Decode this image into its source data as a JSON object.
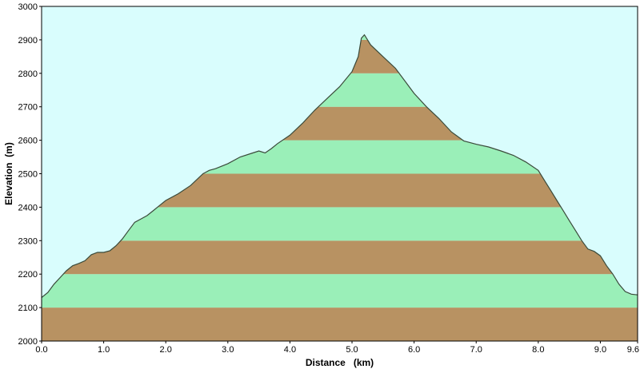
{
  "chart_data": {
    "type": "area",
    "xlabel": "Distance   (km)",
    "ylabel": "Elevation  (m)",
    "xlim": [
      0,
      9.6
    ],
    "ylim": [
      2000,
      3000
    ],
    "x_ticks": [
      "0.0",
      "1.0",
      "2.0",
      "3.0",
      "4.0",
      "5.0",
      "6.0",
      "7.0",
      "8.0",
      "9.0",
      "9.6"
    ],
    "x_tick_values": [
      0,
      1,
      2,
      3,
      4,
      5,
      6,
      7,
      8,
      9,
      9.6
    ],
    "y_ticks": [
      "2000",
      "2100",
      "2200",
      "2300",
      "2400",
      "2500",
      "2600",
      "2700",
      "2800",
      "2900",
      "3000"
    ],
    "y_tick_values": [
      2000,
      2100,
      2200,
      2300,
      2400,
      2500,
      2600,
      2700,
      2800,
      2900,
      3000
    ],
    "band_interval": 100,
    "colors": {
      "background": "#d9fdfd",
      "band_dark": "#b89262",
      "band_light": "#9aefb8",
      "profile_line": "#3a4a3a"
    },
    "series": [
      {
        "x": [
          0.0,
          0.1,
          0.2,
          0.3,
          0.4,
          0.5,
          0.6,
          0.7,
          0.8,
          0.9,
          1.0,
          1.1,
          1.2,
          1.3,
          1.4,
          1.5,
          1.6,
          1.7,
          1.8,
          1.9,
          2.0,
          2.2,
          2.4,
          2.6,
          2.7,
          2.8,
          3.0,
          3.2,
          3.4,
          3.5,
          3.6,
          3.7,
          3.8,
          4.0,
          4.2,
          4.4,
          4.6,
          4.8,
          5.0,
          5.1,
          5.15,
          5.2,
          5.3,
          5.5,
          5.7,
          5.9,
          6.0,
          6.2,
          6.4,
          6.6,
          6.8,
          7.0,
          7.2,
          7.4,
          7.6,
          7.8,
          8.0,
          8.1,
          8.2,
          8.3,
          8.4,
          8.5,
          8.6,
          8.7,
          8.8,
          8.9,
          9.0,
          9.1,
          9.2,
          9.3,
          9.4,
          9.5,
          9.6
        ],
        "values": [
          2130,
          2145,
          2170,
          2190,
          2210,
          2225,
          2232,
          2240,
          2258,
          2265,
          2265,
          2270,
          2285,
          2305,
          2330,
          2355,
          2365,
          2375,
          2390,
          2405,
          2420,
          2440,
          2465,
          2500,
          2510,
          2515,
          2530,
          2550,
          2562,
          2568,
          2562,
          2575,
          2590,
          2615,
          2650,
          2690,
          2725,
          2760,
          2805,
          2850,
          2905,
          2915,
          2885,
          2850,
          2815,
          2765,
          2740,
          2700,
          2665,
          2625,
          2598,
          2588,
          2580,
          2568,
          2555,
          2535,
          2510,
          2480,
          2450,
          2420,
          2390,
          2360,
          2330,
          2300,
          2275,
          2268,
          2255,
          2225,
          2200,
          2170,
          2148,
          2140,
          2138
        ]
      }
    ]
  }
}
